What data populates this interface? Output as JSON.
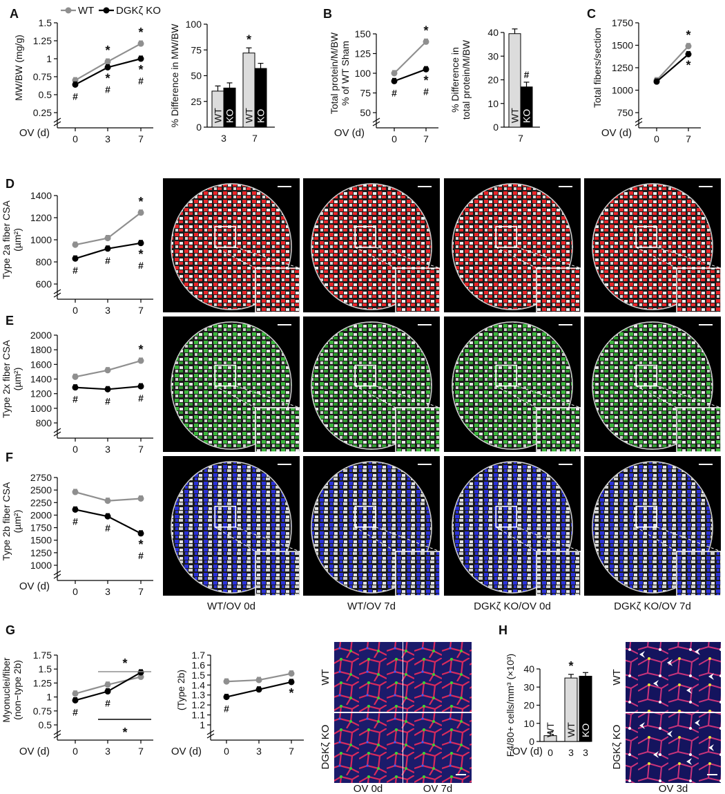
{
  "panel_letters": {
    "A": "A",
    "B": "B",
    "C": "C",
    "D": "D",
    "E": "E",
    "F": "F",
    "G": "G",
    "H": "H"
  },
  "legend": {
    "wt": "WT",
    "ko": "DGKζ KO"
  },
  "x_label": "OV (d)",
  "group_labels": {
    "wt": "WT",
    "ko": "KO"
  },
  "colors": {
    "wt": "#8f8f8f",
    "ko": "#000000",
    "bar_wt": "#dcdcdc",
    "bar_ko": "#000000",
    "type2a": "#e8262a",
    "type2x": "#3db83d",
    "type2b": "#2b32d8"
  },
  "image_captions": [
    "WT/OV 0d",
    "WT/OV 7d",
    "DGKζ KO/OV 0d",
    "DGKζ KO/OV 7d"
  ],
  "g_row_labels": [
    "WT",
    "DGKζ KO"
  ],
  "g_captions": [
    "OV 0d",
    "OV 7d"
  ],
  "h_row_labels": [
    "WT",
    "DGKζ KO"
  ],
  "h_caption": "OV 3d",
  "chart_data": [
    {
      "id": "A1",
      "type": "line",
      "ylabel": "MW/BW (mg/g)",
      "x": [
        0,
        3,
        7
      ],
      "ylim": [
        0.25,
        1.5
      ],
      "yticks": [
        "0.25",
        "0.5",
        "0.75",
        "1",
        "1.25",
        "1.5"
      ],
      "series": [
        {
          "name": "WT",
          "values": [
            0.7,
            0.96,
            1.21
          ]
        },
        {
          "name": "DGKζ KO",
          "values": [
            0.64,
            0.88,
            1.0
          ]
        }
      ],
      "annotations": {
        "wt": [
          "",
          "*",
          "*"
        ],
        "ko": [
          "#",
          "*\n#",
          "*\n#"
        ]
      }
    },
    {
      "id": "A2",
      "type": "bar",
      "ylabel": "% Difference in MW/BW",
      "categories": [
        "3",
        "7"
      ],
      "ylim": [
        0,
        100
      ],
      "yticks": [
        "0",
        "25",
        "50",
        "75",
        "100"
      ],
      "series": [
        {
          "name": "WT",
          "values": [
            35,
            72
          ]
        },
        {
          "name": "KO",
          "values": [
            38,
            57
          ]
        }
      ],
      "annotations": {
        "wt": [
          "",
          "*"
        ],
        "ko": [
          "",
          ""
        ]
      }
    },
    {
      "id": "B1",
      "type": "line",
      "ylabel": "Total protein/M/BW\n% of WT Sham",
      "x": [
        0,
        7
      ],
      "ylim": [
        50,
        150
      ],
      "yticks": [
        "50",
        "75",
        "100",
        "125",
        "150"
      ],
      "series": [
        {
          "name": "WT",
          "values": [
            100,
            140
          ]
        },
        {
          "name": "DGKζ KO",
          "values": [
            90,
            105
          ]
        }
      ],
      "annotations": {
        "wt": [
          "",
          "*"
        ],
        "ko": [
          "#",
          "*\n#"
        ]
      }
    },
    {
      "id": "B2",
      "type": "bar",
      "ylabel": "% Difference in\ntotal protein/M/BW",
      "categories": [
        "7"
      ],
      "ylim": [
        0,
        40
      ],
      "yticks": [
        "0",
        "10",
        "20",
        "30",
        "40"
      ],
      "series": [
        {
          "name": "WT",
          "values": [
            39.5
          ]
        },
        {
          "name": "KO",
          "values": [
            17
          ]
        }
      ],
      "annotations": {
        "wt": [
          ""
        ],
        "ko": [
          "#"
        ]
      }
    },
    {
      "id": "C",
      "type": "line",
      "ylabel": "Total fibers/section",
      "x": [
        0,
        7
      ],
      "ylim": [
        750,
        1750
      ],
      "yticks": [
        "750",
        "1000",
        "1250",
        "1500",
        "1750"
      ],
      "series": [
        {
          "name": "WT",
          "values": [
            1110,
            1490
          ]
        },
        {
          "name": "DGKζ KO",
          "values": [
            1095,
            1400
          ]
        }
      ],
      "annotations": {
        "wt": [
          "",
          "*"
        ],
        "ko": [
          "",
          "*"
        ]
      }
    },
    {
      "id": "D",
      "type": "line",
      "ylabel": "Type 2a fiber CSA\n(µm²)",
      "x": [
        0,
        3,
        7
      ],
      "ylim": [
        600,
        1400
      ],
      "yticks": [
        "600",
        "800",
        "1000",
        "1200",
        "1400"
      ],
      "series": [
        {
          "name": "WT",
          "values": [
            955,
            1015,
            1245
          ]
        },
        {
          "name": "DGKζ KO",
          "values": [
            830,
            920,
            970
          ]
        }
      ],
      "annotations": {
        "wt": [
          "",
          "",
          "*"
        ],
        "ko": [
          "#",
          "#",
          "*\n#"
        ]
      }
    },
    {
      "id": "E",
      "type": "line",
      "ylabel": "Type 2x fiber CSA\n(µm²)",
      "x": [
        0,
        3,
        7
      ],
      "ylim": [
        800,
        2000
      ],
      "yticks": [
        "800",
        "1000",
        "1200",
        "1400",
        "1600",
        "1800",
        "2000"
      ],
      "series": [
        {
          "name": "WT",
          "values": [
            1430,
            1520,
            1650
          ]
        },
        {
          "name": "DGKζ KO",
          "values": [
            1285,
            1260,
            1300
          ]
        }
      ],
      "annotations": {
        "wt": [
          "",
          "",
          "*"
        ],
        "ko": [
          "#",
          "#",
          "#"
        ]
      }
    },
    {
      "id": "F",
      "type": "line",
      "ylabel": "Type 2b fiber CSA\n(µm²)",
      "x": [
        0,
        3,
        7
      ],
      "ylim": [
        1000,
        2750
      ],
      "yticks": [
        "1000",
        "1250",
        "1500",
        "1750",
        "2000",
        "2250",
        "2500",
        "2750"
      ],
      "series": [
        {
          "name": "WT",
          "values": [
            2460,
            2285,
            2330
          ]
        },
        {
          "name": "DGKζ KO",
          "values": [
            2110,
            1975,
            1635
          ]
        }
      ],
      "annotations": {
        "wt": [
          "",
          "",
          ""
        ],
        "ko": [
          "#",
          "#",
          "*\n#"
        ]
      }
    },
    {
      "id": "G1",
      "type": "line",
      "ylabel": "Myonuclei/fiber\n(non−type 2b)",
      "x": [
        0,
        3,
        7
      ],
      "ylim": [
        0.5,
        1.75
      ],
      "yticks": [
        "0.5",
        "0.75",
        "1",
        "1.25",
        "1.5",
        "1.75"
      ],
      "series": [
        {
          "name": "WT",
          "values": [
            1.06,
            1.22,
            1.36
          ]
        },
        {
          "name": "DGKζ KO",
          "values": [
            0.94,
            1.1,
            1.44
          ]
        }
      ],
      "annotations": {
        "wt": [
          "",
          "",
          ""
        ],
        "ko": [
          "#",
          "#",
          ""
        ]
      }
    },
    {
      "id": "G2",
      "type": "line",
      "ylabel": "(Type 2b)",
      "x": [
        0,
        3,
        7
      ],
      "ylim": [
        1.0,
        1.7
      ],
      "yticks": [
        "1",
        "1.1",
        "1.2",
        "1.3",
        "1.4",
        "1.5",
        "1.6",
        "1.7"
      ],
      "series": [
        {
          "name": "WT",
          "values": [
            1.435,
            1.45,
            1.515
          ]
        },
        {
          "name": "DGKζ KO",
          "values": [
            1.28,
            1.355,
            1.43
          ]
        }
      ],
      "annotations": {
        "wt": [
          "",
          "",
          ""
        ],
        "ko": [
          "#",
          "",
          "*"
        ]
      }
    },
    {
      "id": "H",
      "type": "bar",
      "ylabel": "F4/80+ cells/mm³ (×10³)",
      "categories": [
        "0",
        "3",
        "3"
      ],
      "bar_groups": [
        "WT",
        "WT",
        "KO"
      ],
      "ylim": [
        0,
        40
      ],
      "yticks": [
        "0",
        "10",
        "20",
        "30",
        "40"
      ],
      "values": [
        3.2,
        35,
        36
      ],
      "annotations": [
        "",
        "*",
        ""
      ]
    }
  ]
}
